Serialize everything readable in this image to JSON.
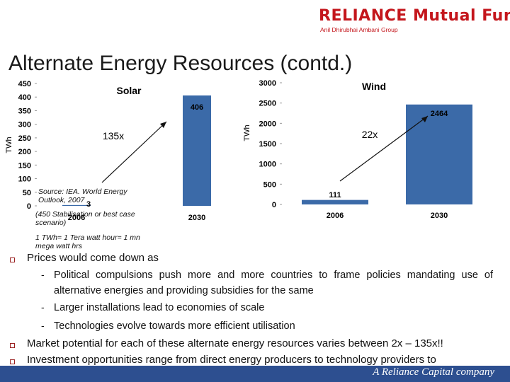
{
  "logo": {
    "brand": "RELIANCE Mutual Fund",
    "tagline": "Anil Dhirubhai Ambani Group",
    "color": "#c4161c"
  },
  "title": "Alternate Energy Resources (contd.)",
  "chart_data": [
    {
      "type": "bar",
      "title": "Solar",
      "ylabel": "TWh",
      "categories": [
        "2006",
        "2030"
      ],
      "values": [
        3,
        406
      ],
      "data_labels": [
        "3",
        "406"
      ],
      "ylim": [
        0,
        450
      ],
      "yticks": [
        "0",
        "50",
        "100",
        "150",
        "200",
        "250",
        "300",
        "350",
        "400",
        "450"
      ],
      "annotation": "135x",
      "bar_color": "#3b6aa8"
    },
    {
      "type": "bar",
      "title": "Wind",
      "ylabel": "TWh",
      "categories": [
        "2006",
        "2030"
      ],
      "values": [
        111,
        2464
      ],
      "data_labels": [
        "111",
        "2464"
      ],
      "ylim": [
        0,
        3000
      ],
      "yticks": [
        "0",
        "500",
        "1000",
        "1500",
        "2000",
        "2500",
        "3000"
      ],
      "annotation": "22x",
      "bar_color": "#3b6aa8"
    }
  ],
  "notes": {
    "source": "Source: IEA. World Energy Outlook, 2007",
    "scenario": "(450 Stabilisation or best case scenario)",
    "units": "1 TWh= 1 Tera watt hour= 1 mn mega watt hrs"
  },
  "bullets": [
    {
      "text": "Prices would come down as",
      "subs": [
        "Political compulsions push more and more countries to frame policies mandating use of alternative energies and providing subsidies for the same",
        "Larger installations lead to economies of scale",
        "Technologies evolve towards more efficient utilisation"
      ]
    },
    {
      "text": "Market potential for each of these alternate energy resources varies between 2x – 135x!!"
    },
    {
      "text": "Investment opportunities range from direct energy producers to technology providers to"
    }
  ],
  "sub_marker": "-",
  "footer": {
    "text": "A Reliance Capital company",
    "color": "#2d4f90"
  }
}
